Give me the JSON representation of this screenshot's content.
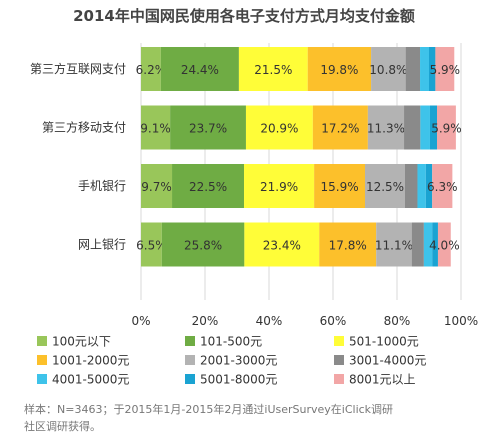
{
  "chart_data": {
    "type": "bar",
    "orientation": "horizontal",
    "stacked": true,
    "title": "2014年中国网民使用各电子支付方式月均支付金额",
    "categories": [
      "第三方互联网支付",
      "第三方移动支付",
      "手机银行",
      "网上银行"
    ],
    "xlim": [
      0,
      100
    ],
    "x_ticks": [
      "0%",
      "20%",
      "40%",
      "60%",
      "80%",
      "100%"
    ],
    "grid": true,
    "legend_position": "bottom",
    "series": [
      {
        "name": "100元以下",
        "color": "#99c65a",
        "values": [
          6.2,
          9.1,
          9.7,
          6.5
        ],
        "labels": [
          "6.2%",
          "9.1%",
          "9.7%",
          "6.5%"
        ]
      },
      {
        "name": "101-500元",
        "color": "#6fac44",
        "values": [
          24.4,
          23.7,
          22.5,
          25.8
        ],
        "labels": [
          "24.4%",
          "23.7%",
          "22.5%",
          "25.8%"
        ]
      },
      {
        "name": "501-1000元",
        "color": "#fffd38",
        "values": [
          21.5,
          20.9,
          21.9,
          23.4
        ],
        "labels": [
          "21.5%",
          "20.9%",
          "21.9%",
          "23.4%"
        ]
      },
      {
        "name": "1001-2000元",
        "color": "#fcc02b",
        "values": [
          19.8,
          17.2,
          15.9,
          17.8
        ],
        "labels": [
          "19.8%",
          "17.2%",
          "15.9%",
          "17.8%"
        ]
      },
      {
        "name": "2001-3000元",
        "color": "#b3b3b3",
        "values": [
          10.8,
          11.3,
          12.5,
          11.1
        ],
        "labels": [
          "10.8%",
          "11.3%",
          "12.5%",
          "11.1%"
        ]
      },
      {
        "name": "3001-4000元",
        "color": "#8a8a8a",
        "values": [
          4.5,
          5.1,
          3.9,
          3.8
        ],
        "labels": [
          "",
          "",
          "",
          ""
        ]
      },
      {
        "name": "4001-5000元",
        "color": "#3ec3ea",
        "values": [
          2.8,
          3.0,
          2.6,
          2.6
        ],
        "labels": [
          "",
          "",
          "",
          ""
        ]
      },
      {
        "name": "5001-8000元",
        "color": "#1aa3d2",
        "values": [
          2.0,
          2.2,
          2.0,
          1.8
        ],
        "labels": [
          "",
          "",
          "",
          ""
        ]
      },
      {
        "name": "8001元以上",
        "color": "#f2a6a6",
        "values": [
          5.9,
          5.9,
          6.3,
          4.0
        ],
        "labels": [
          "5.9%",
          "5.9%",
          "6.3%",
          "4.0%"
        ]
      }
    ],
    "note": "样本：N=3463；于2015年1月-2015年2月通过iUserSurvey在iClick调研社区调研获得。"
  }
}
